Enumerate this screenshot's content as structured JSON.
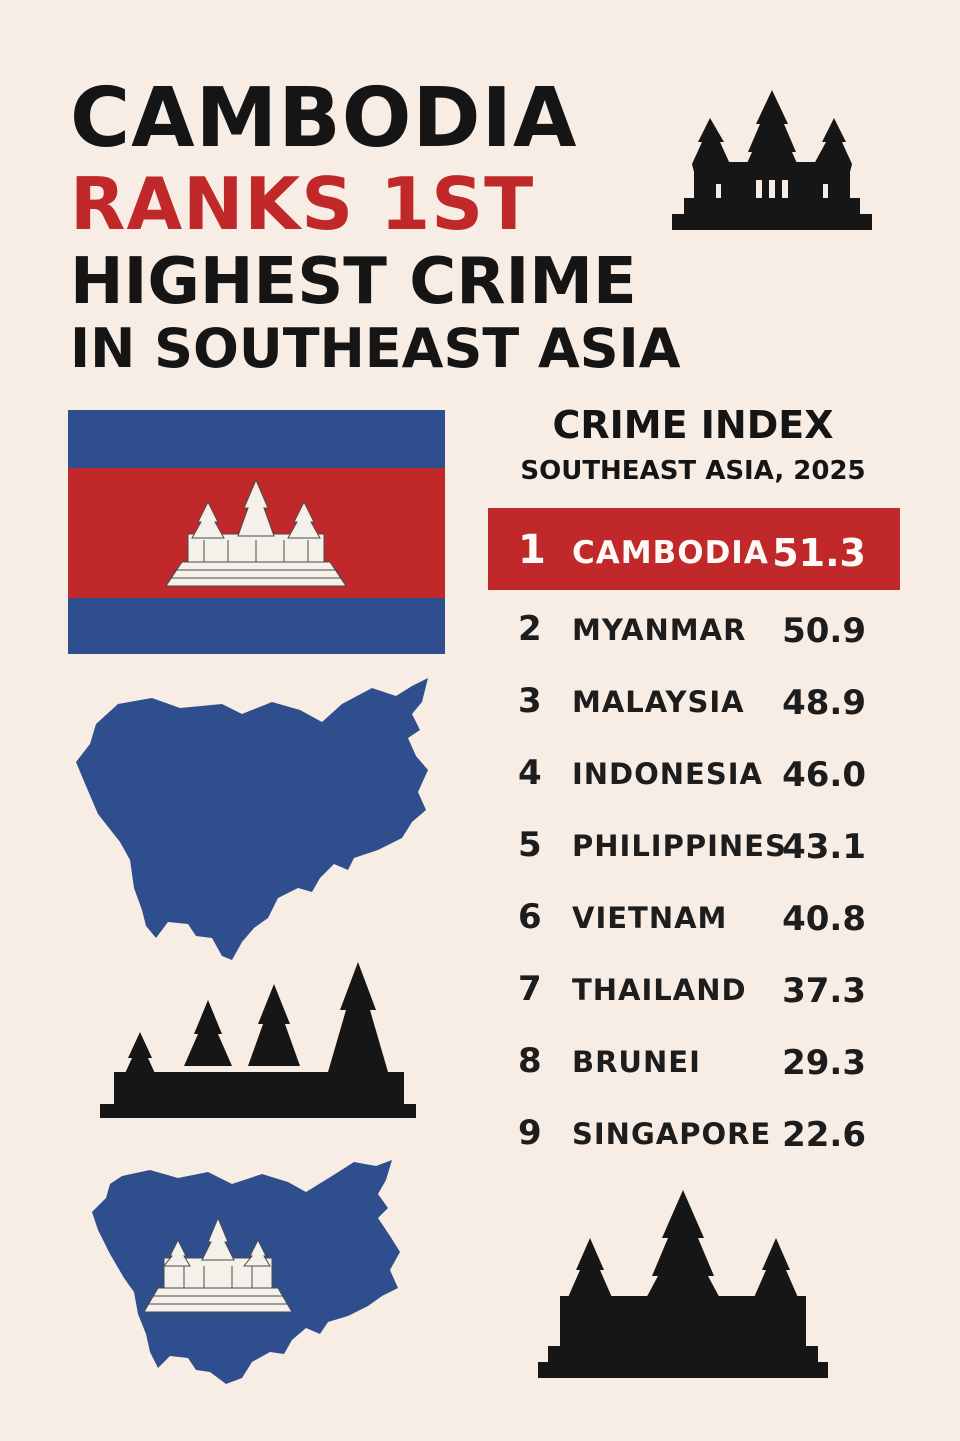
{
  "headline": {
    "line1": "CAMBODIA",
    "line2": "RANKS 1ST",
    "line3": "HIGHEST CRIME",
    "line4": "IN SOUTHEAST ASIA"
  },
  "ranking": {
    "title": "CRIME INDEX",
    "subtitle": "SOUTHEAST ASIA, 2025",
    "rows": [
      {
        "rank": "1",
        "country": "CAMBODIA",
        "value": "51.3",
        "highlight": true
      },
      {
        "rank": "2",
        "country": "MYANMAR",
        "value": "50.9"
      },
      {
        "rank": "3",
        "country": "MALAYSIA",
        "value": "48.9"
      },
      {
        "rank": "4",
        "country": "INDONESIA",
        "value": "46.0"
      },
      {
        "rank": "5",
        "country": "PHILIPPINES",
        "value": "43.1"
      },
      {
        "rank": "6",
        "country": "VIETNAM",
        "value": "40.8"
      },
      {
        "rank": "7",
        "country": "THAILAND",
        "value": "37.3"
      },
      {
        "rank": "8",
        "country": "BRUNEI",
        "value": "29.3"
      },
      {
        "rank": "9",
        "country": "SINGAPORE",
        "value": "22.6"
      }
    ]
  },
  "colors": {
    "background": "#f8ede4",
    "accent_red": "#c0282a",
    "flag_blue": "#2f4e8e",
    "ink": "#151515"
  },
  "icons": {
    "temple_top": "angkor-temple-silhouette-icon",
    "flag": "cambodia-flag-icon",
    "map": "cambodia-map-icon",
    "temple_row": "temple-spires-silhouette-icon",
    "map_flag": "cambodia-map-with-temple-icon",
    "temple_bottom": "angkor-temple-silhouette-icon"
  }
}
